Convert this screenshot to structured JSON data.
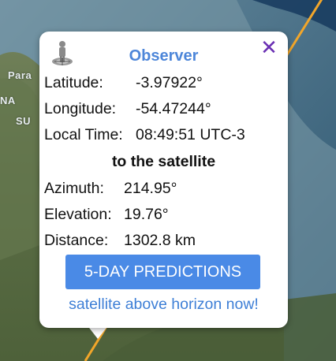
{
  "map": {
    "labels": [
      "Para",
      "NA",
      "SU"
    ]
  },
  "popup": {
    "title": "Observer",
    "close_icon": "✕",
    "latitude_label": "Latitude:",
    "latitude_value": "-3.97922°",
    "longitude_label": "Longitude:",
    "longitude_value": "-54.47244°",
    "local_time_label": "Local Time:",
    "local_time_value": "08:49:51 UTC-3",
    "section_heading": "to the satellite",
    "azimuth_label": "Azimuth:",
    "azimuth_value": "214.95°",
    "elevation_label": "Elevation:",
    "elevation_value": "19.76°",
    "distance_label": "Distance:",
    "distance_value": "1302.8 km",
    "predictions_button": "5-DAY PREDICTIONS",
    "status_text": "satellite above horizon now!"
  },
  "colors": {
    "title": "#4d86d9",
    "close": "#6a2fb3",
    "button": "#4a8ae6",
    "status": "#3e7fd6",
    "orbit_track": "#f2a62a"
  }
}
